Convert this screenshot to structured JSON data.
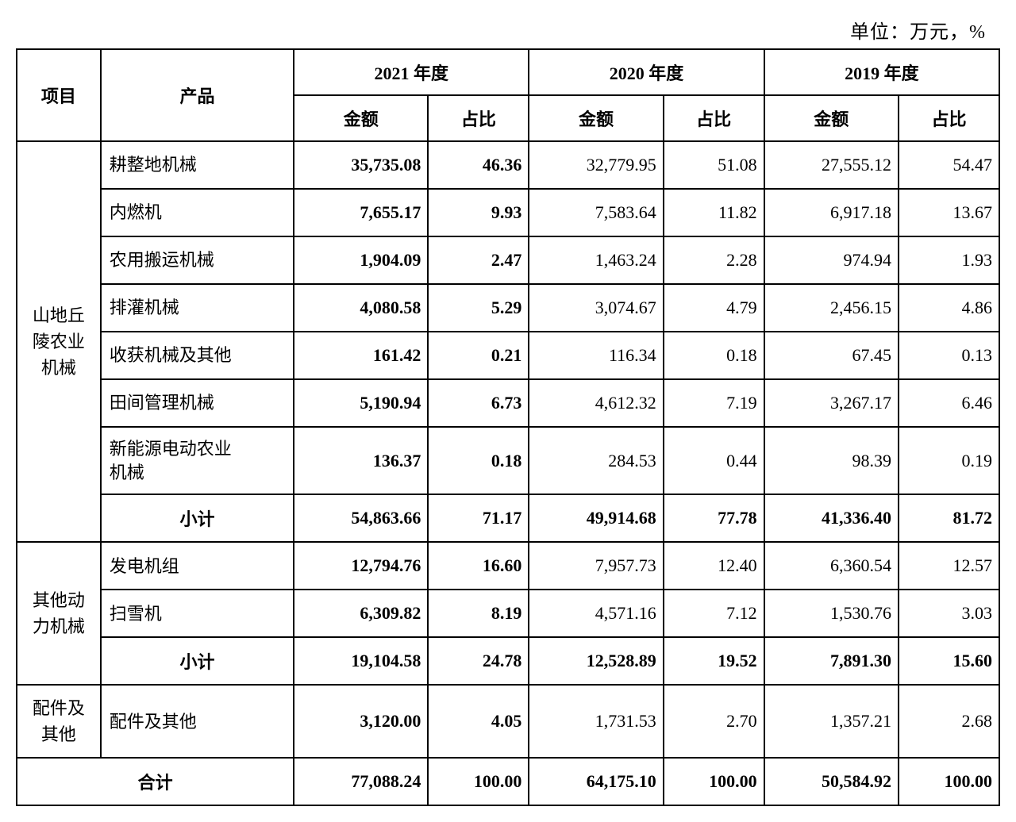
{
  "unit_label": "单位：万元，%",
  "headers": {
    "project": "项目",
    "product": "产品",
    "y2021": "2021 年度",
    "y2020": "2020 年度",
    "y2019": "2019 年度",
    "amount": "金额",
    "ratio": "占比"
  },
  "groups": [
    {
      "name": "山地丘\n陵农业\n机械",
      "rows": [
        {
          "product": "耕整地机械",
          "y21a": "35,735.08",
          "y21r": "46.36",
          "y20a": "32,779.95",
          "y20r": "51.08",
          "y19a": "27,555.12",
          "y19r": "54.47",
          "bold21": true
        },
        {
          "product": "内燃机",
          "y21a": "7,655.17",
          "y21r": "9.93",
          "y20a": "7,583.64",
          "y20r": "11.82",
          "y19a": "6,917.18",
          "y19r": "13.67",
          "bold21": true
        },
        {
          "product": "农用搬运机械",
          "y21a": "1,904.09",
          "y21r": "2.47",
          "y20a": "1,463.24",
          "y20r": "2.28",
          "y19a": "974.94",
          "y19r": "1.93",
          "bold21": true
        },
        {
          "product": "排灌机械",
          "y21a": "4,080.58",
          "y21r": "5.29",
          "y20a": "3,074.67",
          "y20r": "4.79",
          "y19a": "2,456.15",
          "y19r": "4.86",
          "bold21": true
        },
        {
          "product": "收获机械及其他",
          "y21a": "161.42",
          "y21r": "0.21",
          "y20a": "116.34",
          "y20r": "0.18",
          "y19a": "67.45",
          "y19r": "0.13",
          "bold21": true
        },
        {
          "product": "田间管理机械",
          "y21a": "5,190.94",
          "y21r": "6.73",
          "y20a": "4,612.32",
          "y20r": "7.19",
          "y19a": "3,267.17",
          "y19r": "6.46",
          "bold21": true
        },
        {
          "product": "新能源电动农业\n机械",
          "y21a": "136.37",
          "y21r": "0.18",
          "y20a": "284.53",
          "y20r": "0.44",
          "y19a": "98.39",
          "y19r": "0.19",
          "bold21": true
        }
      ],
      "subtotal": {
        "label": "小计",
        "y21a": "54,863.66",
        "y21r": "71.17",
        "y20a": "49,914.68",
        "y20r": "77.78",
        "y19a": "41,336.40",
        "y19r": "81.72"
      }
    },
    {
      "name": "其他动\n力机械",
      "rows": [
        {
          "product": "发电机组",
          "y21a": "12,794.76",
          "y21r": "16.60",
          "y20a": "7,957.73",
          "y20r": "12.40",
          "y19a": "6,360.54",
          "y19r": "12.57",
          "bold21": true
        },
        {
          "product": "扫雪机",
          "y21a": "6,309.82",
          "y21r": "8.19",
          "y20a": "4,571.16",
          "y20r": "7.12",
          "y19a": "1,530.76",
          "y19r": "3.03",
          "bold21": true
        }
      ],
      "subtotal": {
        "label": "小计",
        "y21a": "19,104.58",
        "y21r": "24.78",
        "y20a": "12,528.89",
        "y20r": "19.52",
        "y19a": "7,891.30",
        "y19r": "15.60"
      }
    },
    {
      "name": "配件及\n其他",
      "rows": [
        {
          "product": "配件及其他",
          "y21a": "3,120.00",
          "y21r": "4.05",
          "y20a": "1,731.53",
          "y20r": "2.70",
          "y19a": "1,357.21",
          "y19r": "2.68",
          "bold21": true
        }
      ]
    }
  ],
  "total": {
    "label": "合计",
    "y21a": "77,088.24",
    "y21r": "100.00",
    "y20a": "64,175.10",
    "y20r": "100.00",
    "y19a": "50,584.92",
    "y19r": "100.00"
  }
}
